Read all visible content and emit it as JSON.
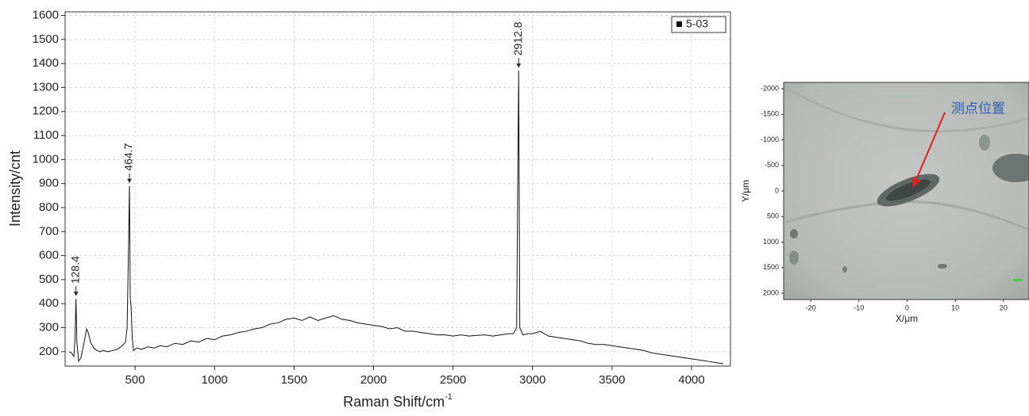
{
  "chart_data": [
    {
      "type": "line",
      "xlabel": "Raman Shift/cm",
      "xlabel_sup": "-1",
      "ylabel": "Intensity/cnt",
      "xlim": [
        60,
        4245
      ],
      "ylim": [
        140,
        1615
      ],
      "xticks": [
        500,
        1000,
        1500,
        2000,
        2500,
        3000,
        3500,
        4000
      ],
      "yticks": [
        200,
        300,
        400,
        500,
        600,
        700,
        800,
        900,
        1000,
        1100,
        1200,
        1300,
        1400,
        1500,
        1600
      ],
      "grid": true,
      "legend": "upper right",
      "peaks": [
        128.4,
        464.7,
        2912.8
      ],
      "x": [
        85,
        100,
        115,
        122,
        128.4,
        134,
        145,
        160,
        180,
        195,
        205,
        220,
        240,
        260,
        280,
        300,
        330,
        360,
        390,
        420,
        440,
        450,
        458,
        464.7,
        470,
        475,
        482,
        490,
        510,
        540,
        580,
        620,
        660,
        700,
        750,
        800,
        850,
        900,
        950,
        1000,
        1050,
        1100,
        1150,
        1200,
        1250,
        1300,
        1350,
        1400,
        1450,
        1500,
        1550,
        1600,
        1650,
        1700,
        1750,
        1800,
        1850,
        1900,
        1950,
        2000,
        2050,
        2100,
        2150,
        2200,
        2250,
        2300,
        2350,
        2400,
        2450,
        2500,
        2550,
        2600,
        2650,
        2700,
        2750,
        2800,
        2850,
        2880,
        2900,
        2912.8,
        2920,
        2940,
        2970,
        3000,
        3050,
        3100,
        3150,
        3200,
        3250,
        3300,
        3350,
        3400,
        3450,
        3500,
        3550,
        3600,
        3650,
        3700,
        3750,
        3800,
        3850,
        3900,
        3950,
        4000,
        4050,
        4100,
        4150,
        4200
      ],
      "series": [
        {
          "name": "5-03",
          "color": "#111111",
          "values": [
            200,
            195,
            180,
            250,
            420,
            240,
            160,
            175,
            240,
            295,
            280,
            240,
            215,
            205,
            200,
            205,
            200,
            205,
            210,
            225,
            240,
            300,
            600,
            890,
            420,
            390,
            260,
            205,
            215,
            210,
            220,
            215,
            225,
            220,
            235,
            230,
            245,
            240,
            255,
            250,
            265,
            270,
            280,
            285,
            295,
            300,
            315,
            320,
            335,
            340,
            330,
            345,
            330,
            340,
            350,
            335,
            330,
            320,
            315,
            310,
            305,
            295,
            300,
            285,
            285,
            280,
            275,
            270,
            270,
            265,
            270,
            265,
            268,
            270,
            265,
            270,
            275,
            275,
            300,
            1370,
            300,
            270,
            275,
            275,
            285,
            265,
            260,
            255,
            250,
            245,
            235,
            230,
            230,
            225,
            220,
            215,
            210,
            205,
            195,
            190,
            185,
            180,
            175,
            170,
            165,
            160,
            155,
            150
          ]
        }
      ]
    },
    {
      "type": "image",
      "xlabel": "X/μm",
      "ylabel": "Y/μm",
      "annotation": "测点位置",
      "xlim": [
        -25.6,
        25.3
      ],
      "ylim": [
        -2124,
        2124
      ],
      "xticks": [
        -20,
        -10,
        0,
        10,
        20
      ],
      "yticks": [
        -2000,
        -1500,
        -1000,
        -500,
        0,
        500,
        1000,
        1500,
        2000
      ]
    }
  ]
}
